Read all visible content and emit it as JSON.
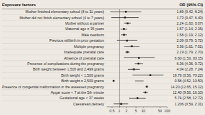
{
  "chart_data": {
    "type": "forest",
    "title": "Exposure factors",
    "annotations": [
      "OR (95% CI)"
    ],
    "categories": [
      "Mother finished elementary school (8 to 11 years)",
      "Mother did not finish elementary school (4 to 7 years)",
      "Mother without a partner",
      "Maternal age ≥ 35 years",
      "Male newborn",
      "Previous stillbirth in prior gestation",
      "Multiple pregnancy",
      "Inadequate prenatal care",
      "Absence of prenatal care",
      "Presence of complications during the pregnancy",
      "Birth weight between 1,500 and 2,499 grams",
      "Birth weight < 1,500 grams",
      "Birth weight ≥ 2,500 grams",
      "Presence of congenital malformation in the assessed pregnancy",
      "Apgar score < 7 at the 5th minute",
      "Gestational age < 37 weeks",
      "Caesarean delivery"
    ],
    "values": [
      1.89,
      1.73,
      2.24,
      1.57,
      1.58,
      2.09,
      3.36,
      2.19,
      6.6,
      6.36,
      4.04,
      19.73,
      0.58,
      14.2,
      12.4,
      5.74,
      1.21
    ],
    "lower": [
      0.42,
      0.47,
      1.6,
      1.14,
      1.19,
      0.79,
      1.61,
      1.79,
      1.53,
      4.36,
      2.28,
      3.56,
      4.52,
      12.65,
      9.56,
      2.58,
      0.59
    ],
    "upper": [
      8.24,
      6.4,
      3.07,
      2.15,
      2.12,
      5.72,
      7.01,
      2.7,
      30.15,
      9.72,
      7.24,
      70.22,
      10.5,
      15.12,
      16.1,
      12.72,
      2.31
    ],
    "value_labels": [
      "1.89 (0.42, 8.24)",
      "1.73 (0.47, 6.40)",
      "2.24 (1.60, 3.07)",
      "1.57 (1.14, 2.15)",
      "1.58 (1.19, 2.12)",
      "2.09 (0.79, 5.72)",
      "3.36 (1.61, 7.01)",
      "2.19 (1.79, 2.70)",
      "6.60 (1.53, 30.15)",
      "6.36 (4.36, 9.72)",
      "4.04 (2.28, 7.24)",
      "19.73 (3.56, 70.22)",
      "0.58 (4.52, 10.50)",
      "14.20 (12.65, 15.12)",
      "12.40 (9.56, 16.10)",
      "5.74 (2.58, 12.72)",
      "1.206 (0.59, 2.31)"
    ],
    "reference_line": 1.0,
    "xlim": [
      0.3,
      100
    ],
    "xticks": [
      0.5,
      1,
      2,
      5,
      10,
      50,
      100
    ],
    "log": "x",
    "grid": true,
    "color": "#222222"
  }
}
